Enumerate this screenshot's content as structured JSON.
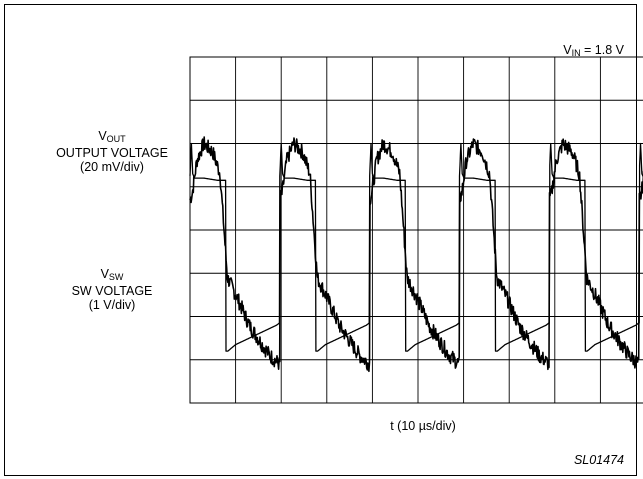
{
  "chart_data": {
    "type": "line",
    "title": "",
    "condition": {
      "symbol": "V",
      "subscript": "IN",
      "value": " = 1.8 V"
    },
    "xlabel": "t (10 µs/div)",
    "figure_id": "SL01474",
    "grid": true,
    "divisions": {
      "x": 10,
      "y": 8
    },
    "x_per_div_us": 10,
    "x_range_us": [
      0,
      100
    ],
    "period_us": 19.7,
    "series": [
      {
        "name": "VOUT",
        "label": {
          "symbol": "V",
          "subscript": "OUT",
          "line2": "OUTPUT VOLTAGE",
          "line3": "(20 mV/div)"
        },
        "scale_per_div": "20 mV",
        "color": "#000000",
        "points": [
          [
            0,
            -26
          ],
          [
            0.5,
            -23
          ],
          [
            1.5,
            -8
          ],
          [
            3,
            0
          ],
          [
            5,
            -4
          ],
          [
            6.6,
            -14
          ],
          [
            8.2,
            -62
          ],
          [
            10.5,
            -72
          ],
          [
            13,
            -84
          ],
          [
            15.5,
            -92
          ],
          [
            17.5,
            -98
          ],
          [
            19.6,
            -102
          ]
        ],
        "noise_mV": 3.5
      },
      {
        "name": "VSW",
        "label": {
          "symbol": "V",
          "subscript": "SW",
          "line2": "SW VOLTAGE",
          "line3": "(1 V/div)"
        },
        "scale_per_div": "1 V",
        "color": "#000000",
        "points": [
          [
            0,
            4.25
          ],
          [
            0.3,
            5.0
          ],
          [
            0.6,
            4.3
          ],
          [
            1.0,
            4.2
          ],
          [
            3,
            4.2
          ],
          [
            6,
            4.15
          ],
          [
            7.8,
            4.15
          ],
          [
            7.9,
            0.2
          ],
          [
            8.3,
            0.2
          ],
          [
            10,
            0.35
          ],
          [
            13,
            0.5
          ],
          [
            16,
            0.65
          ],
          [
            19,
            0.8
          ],
          [
            19.6,
            0.85
          ]
        ]
      }
    ]
  }
}
